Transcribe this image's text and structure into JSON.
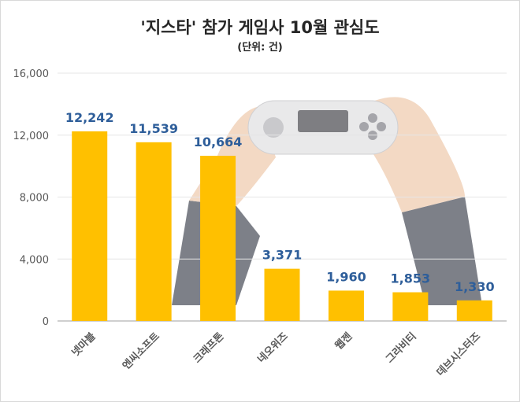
{
  "chart_data": {
    "type": "bar",
    "title": "'지스타' 참가 게임사 10월 관심도",
    "subtitle": "(단위: 건)",
    "categories": [
      "넷마블",
      "엔씨소프트",
      "크래프톤",
      "네오위즈",
      "웹젠",
      "그라비티",
      "데브시스터즈"
    ],
    "values": [
      12242,
      11539,
      10664,
      3371,
      1960,
      1853,
      1330
    ],
    "data_labels": [
      "12,242",
      "11,539",
      "10,664",
      "3,371",
      "1,960",
      "1,853",
      "1,330"
    ],
    "ylim": [
      0,
      16000
    ],
    "yticks": [
      0,
      4000,
      8000,
      12000,
      16000
    ],
    "ytick_labels": [
      "0",
      "4,000",
      "8,000",
      "12,000",
      "16,000"
    ],
    "grid": true,
    "xlabel": "",
    "ylabel": "",
    "colors": {
      "bar": "#FFC000",
      "data_label": "#2E5E9A",
      "grid": "#e6e6e6",
      "axis_text": "#595959"
    },
    "background_illustration": "hands-holding-game-controller"
  }
}
